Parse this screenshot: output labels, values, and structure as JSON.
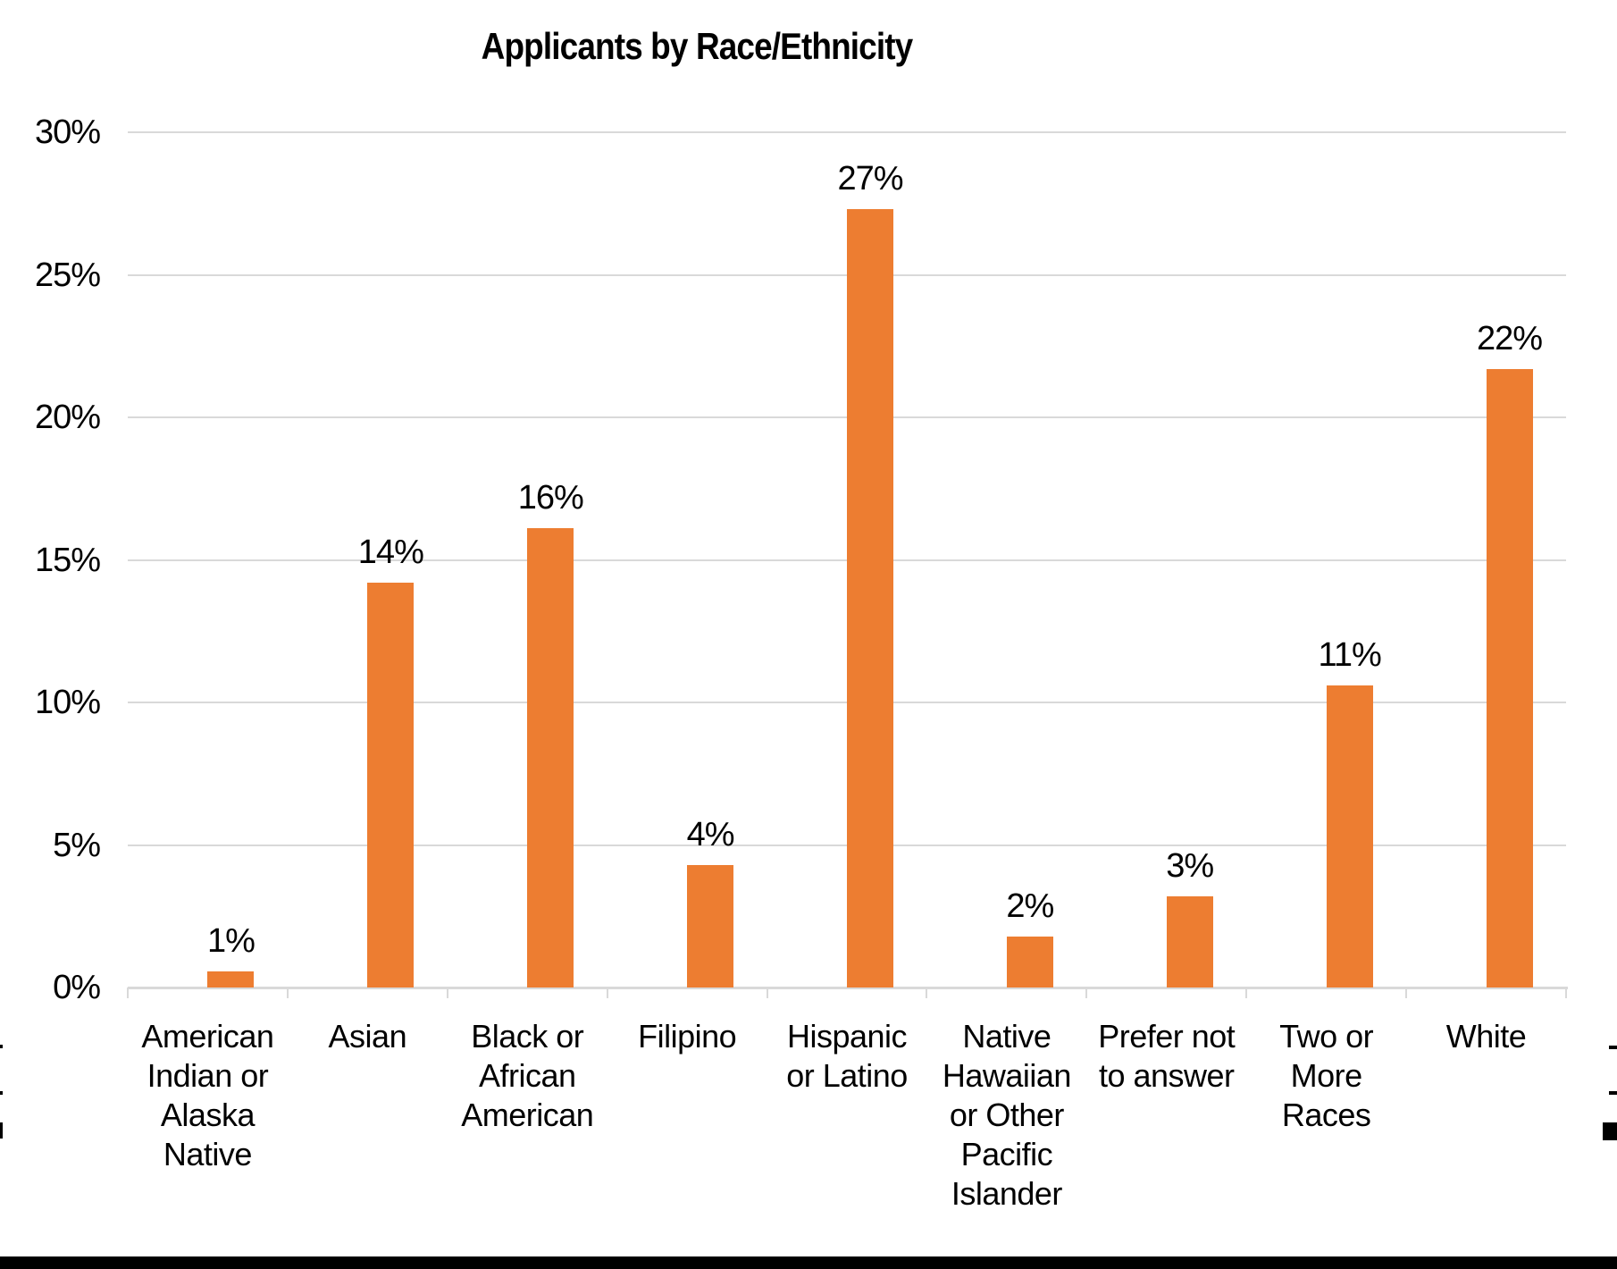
{
  "page": {
    "kind": "document-embedded-chart-screenshot"
  },
  "chart_data": {
    "type": "bar",
    "title": "Applicants by Race/Ethnicity",
    "categories": [
      "American Indian or Alaska Native",
      "Asian",
      "Black or African American",
      "Filipino",
      "Hispanic or Latino",
      "Native Hawaiian or Other Pacific Islander",
      "Prefer not to answer",
      "Two or More Races",
      "White"
    ],
    "category_label_lines": [
      [
        "American",
        "Indian or",
        "Alaska",
        "Native"
      ],
      [
        "Asian"
      ],
      [
        "Black or",
        "African",
        "American"
      ],
      [
        "Filipino"
      ],
      [
        "Hispanic",
        "or Latino"
      ],
      [
        "Native",
        "Hawaiian",
        "or Other",
        "Pacific",
        "Islander"
      ],
      [
        "Prefer not",
        "to answer"
      ],
      [
        "Two or",
        "More",
        "Races"
      ],
      [
        "White"
      ]
    ],
    "values": [
      0.55,
      14.2,
      16.1,
      4.3,
      27.3,
      1.8,
      3.2,
      10.6,
      21.7
    ],
    "data_labels": [
      "1%",
      "14%",
      "16%",
      "4%",
      "27%",
      "2%",
      "3%",
      "11%",
      "22%"
    ],
    "xlabel": "",
    "ylabel": "",
    "y_axis": {
      "tick_labels": [
        "30%",
        "25%",
        "20%",
        "15%",
        "10%",
        "5%",
        "0%"
      ],
      "tick_values": [
        30,
        25,
        20,
        15,
        10,
        5,
        0
      ],
      "min": 0,
      "max": 30,
      "grid": true
    },
    "legend_position": "none",
    "colors": {
      "bar": "#ed7d31",
      "gridline": "#d9d9d9",
      "axis": "#d9d9d9",
      "text": "#000000",
      "background": "#ffffff",
      "bottom_rule": "#000000"
    }
  }
}
